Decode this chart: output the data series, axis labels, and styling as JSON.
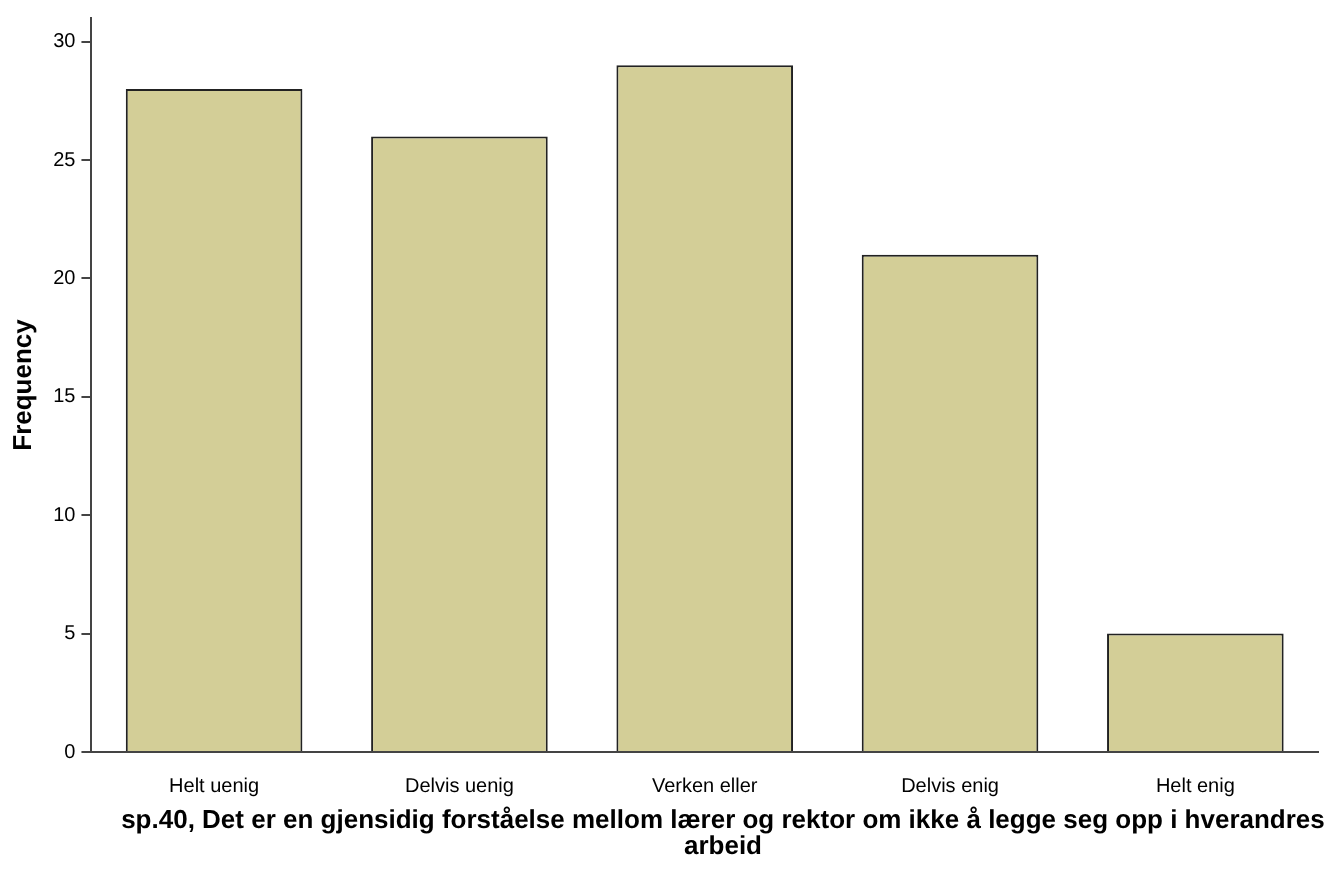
{
  "chart_data": {
    "type": "bar",
    "xlabel": "sp.40, Det er en gjensidig forståelse mellom lærer og rektor om ikke å legge seg opp i hverandres arbeid",
    "ylabel": "Frequency",
    "categories": [
      "Helt uenig",
      "Delvis uenig",
      "Verken eller",
      "Delvis enig",
      "Helt enig"
    ],
    "values": [
      28,
      26,
      29,
      21,
      5
    ],
    "color": "#d3ce97",
    "ylim": [
      0,
      31
    ],
    "yticks": [
      0,
      5,
      10,
      15,
      20,
      25,
      30
    ],
    "grid": false,
    "legend": false
  }
}
